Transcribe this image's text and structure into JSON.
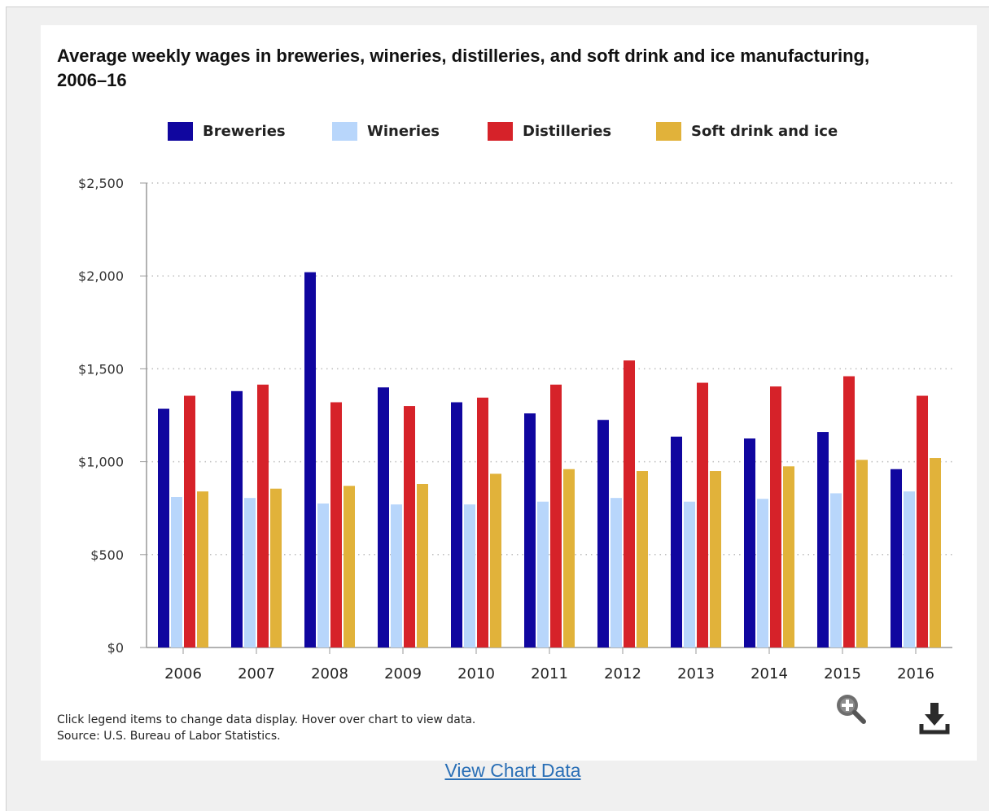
{
  "title": "Average weekly wages in breweries, wineries, distilleries, and soft drink and ice manufacturing, 2006–16",
  "legend": [
    {
      "label": "Breweries",
      "color": "#10069f"
    },
    {
      "label": "Wineries",
      "color": "#b8d6fb"
    },
    {
      "label": "Distilleries",
      "color": "#d62229"
    },
    {
      "label": "Soft drink and ice",
      "color": "#e1b23a"
    }
  ],
  "note": {
    "line1": "Click legend items to change data display. Hover over chart to view data.",
    "line2": "Source: U.S. Bureau of Labor Statistics."
  },
  "view_chart_data": "View Chart Data",
  "icons": {
    "zoom": "zoom-in-icon",
    "download": "download-icon"
  },
  "chart_data": {
    "type": "bar",
    "title": "Average weekly wages in breweries, wineries, distilleries, and soft drink and ice manufacturing, 2006–16",
    "xlabel": "",
    "ylabel": "",
    "ylim": [
      0,
      2500
    ],
    "yticks": [
      "$0",
      "$500",
      "$1,000",
      "$1,500",
      "$2,000",
      "$2,500"
    ],
    "categories": [
      "2006",
      "2007",
      "2008",
      "2009",
      "2010",
      "2011",
      "2012",
      "2013",
      "2014",
      "2015",
      "2016"
    ],
    "grid": true,
    "legend_position": "top",
    "series": [
      {
        "name": "Breweries",
        "color": "#10069f",
        "values": [
          1285,
          1380,
          2020,
          1400,
          1320,
          1260,
          1225,
          1135,
          1125,
          1160,
          960
        ]
      },
      {
        "name": "Wineries",
        "color": "#b8d6fb",
        "values": [
          810,
          805,
          775,
          770,
          770,
          785,
          805,
          785,
          800,
          830,
          840
        ]
      },
      {
        "name": "Distilleries",
        "color": "#d62229",
        "values": [
          1355,
          1415,
          1320,
          1300,
          1345,
          1415,
          1545,
          1425,
          1405,
          1460,
          1355
        ]
      },
      {
        "name": "Soft drink and ice",
        "color": "#e1b23a",
        "values": [
          840,
          855,
          870,
          880,
          935,
          960,
          950,
          950,
          975,
          1010,
          1020
        ]
      }
    ]
  }
}
